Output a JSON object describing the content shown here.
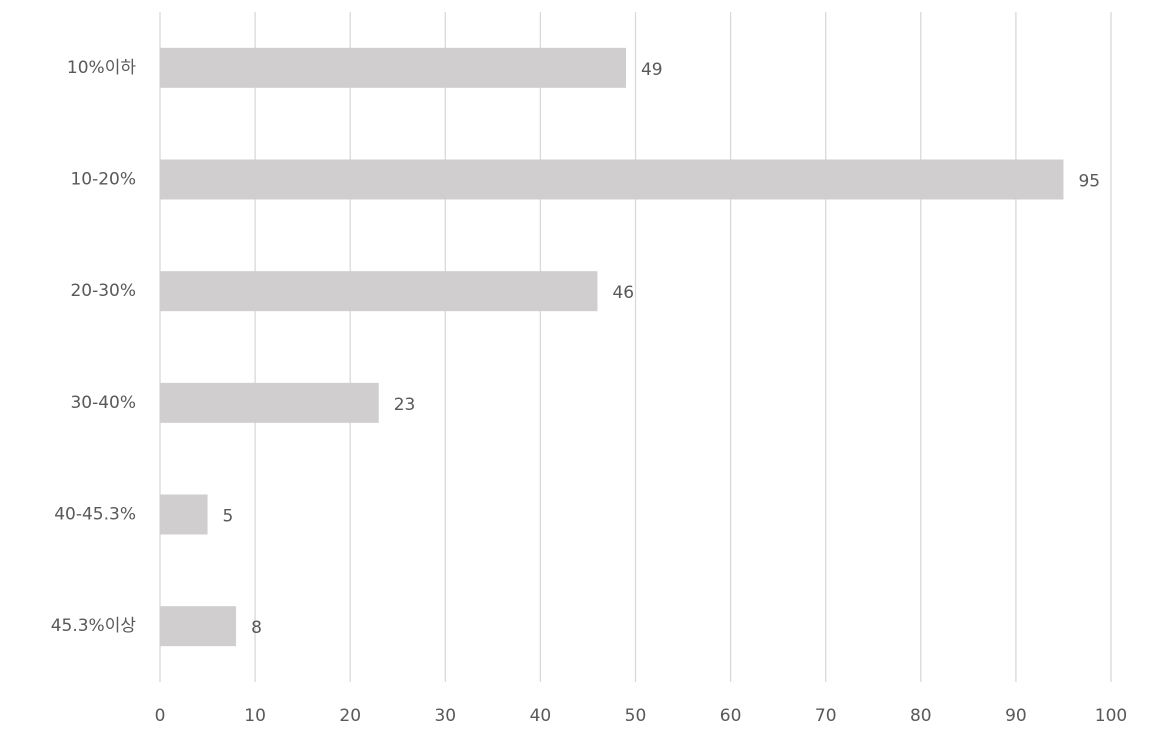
{
  "chart_data": {
    "type": "bar",
    "orientation": "horizontal",
    "categories": [
      "10%이하",
      "10-20%",
      "20-30%",
      "30-40%",
      "40-45.3%",
      "45.3%이상"
    ],
    "values": [
      49,
      95,
      46,
      23,
      5,
      8
    ],
    "color": "#d0cece",
    "xlim": [
      0,
      100
    ],
    "xticks": [
      0,
      10,
      20,
      30,
      40,
      50,
      60,
      70,
      80,
      90,
      100
    ],
    "grid": true
  }
}
